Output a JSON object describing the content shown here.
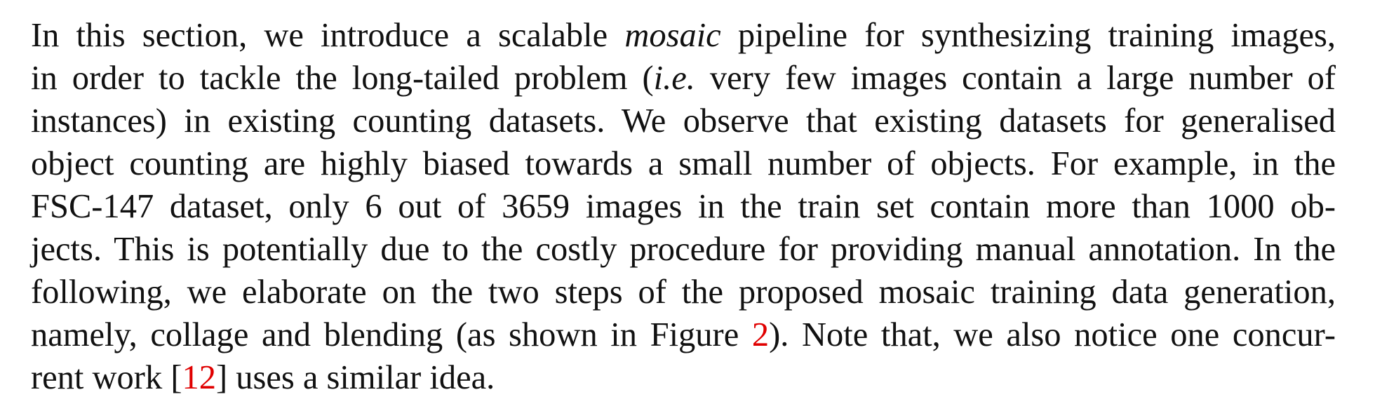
{
  "paragraph": {
    "lines": [
      {
        "before": "In this section, we introduce a scalable ",
        "emphasis": "mosaic",
        "after": " pipeline for synthesizing training images,"
      },
      {
        "before": "in order to tackle the long-tailed problem (",
        "emphasis": "i.e.",
        "after": " very few images contain a large number of"
      },
      {
        "text": "instances) in existing counting datasets.  We observe that existing datasets for generalised"
      },
      {
        "text": "object counting are highly biased towards a small number of objects.  For example, in the"
      },
      {
        "text": "FSC-147 dataset, only 6 out of 3659 images in the train set contain more than 1000 ob-"
      },
      {
        "text": "jects. This is potentially due to the costly procedure for providing manual annotation. In the"
      },
      {
        "text": "following, we elaborate on the two steps of the proposed mosaic training data generation,"
      },
      {
        "before": "namely, collage and blending (as shown in Figure ",
        "ref": "2",
        "after": "). Note that, we also notice one concur-"
      },
      {
        "before": "rent work [",
        "ref": "12",
        "after": "] uses a similar idea."
      }
    ]
  },
  "colors": {
    "text": "#111111",
    "reference_link": "#e00000",
    "background": "#ffffff"
  }
}
